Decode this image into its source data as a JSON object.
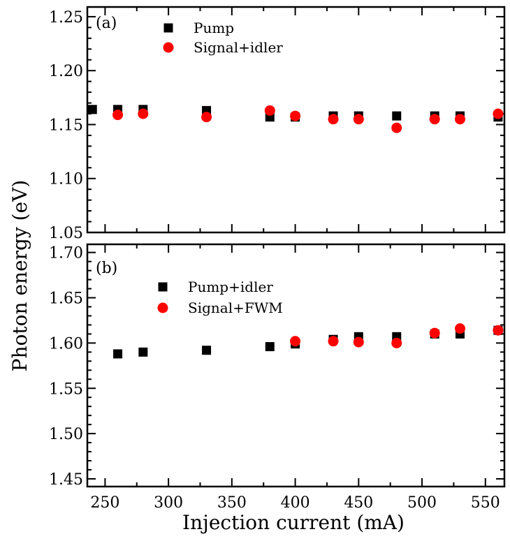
{
  "chart_data": [
    {
      "type": "scatter",
      "panel_label": "(a)",
      "xlabel": "Injection current (mA)",
      "ylabel": "Photon energy (eV)",
      "xlim": [
        236,
        565
      ],
      "ylim": [
        1.05,
        1.259
      ],
      "x_ticks": [
        "250",
        "300",
        "350",
        "400",
        "450",
        "500",
        "550"
      ],
      "y_ticks": [
        "1.05",
        "1.10",
        "1.15",
        "1.20",
        "1.25"
      ],
      "legend_position": "top-left",
      "series": [
        {
          "name": "Pump",
          "marker": "square",
          "color": "#000000",
          "x": [
            240,
            260,
            280,
            330,
            380,
            400,
            430,
            450,
            480,
            510,
            530,
            560
          ],
          "y": [
            1.164,
            1.164,
            1.164,
            1.163,
            1.157,
            1.157,
            1.158,
            1.158,
            1.158,
            1.158,
            1.158,
            1.157
          ]
        },
        {
          "name": "Signal+idler",
          "marker": "circle",
          "color": "#ff0000",
          "x": [
            260,
            280,
            330,
            380,
            400,
            430,
            450,
            480,
            510,
            530,
            560
          ],
          "y": [
            1.159,
            1.16,
            1.157,
            1.163,
            1.158,
            1.155,
            1.155,
            1.147,
            1.155,
            1.155,
            1.16
          ]
        }
      ]
    },
    {
      "type": "scatter",
      "panel_label": "(b)",
      "xlabel": "Injection current (mA)",
      "ylabel": "Photon energy (eV)",
      "xlim": [
        236,
        565
      ],
      "ylim": [
        1.4415,
        1.709
      ],
      "x_ticks": [
        "250",
        "300",
        "350",
        "400",
        "450",
        "500",
        "550"
      ],
      "y_ticks": [
        "1.45",
        "1.50",
        "1.55",
        "1.60",
        "1.65",
        "1.70"
      ],
      "legend_position": "top-left",
      "series": [
        {
          "name": "Pump+idler",
          "marker": "square",
          "color": "#000000",
          "x": [
            260,
            280,
            330,
            380,
            400,
            430,
            450,
            480,
            510,
            530,
            560
          ],
          "y": [
            1.588,
            1.59,
            1.592,
            1.596,
            1.599,
            1.604,
            1.607,
            1.607,
            1.61,
            1.61,
            1.614
          ]
        },
        {
          "name": "Signal+FWM",
          "marker": "circle",
          "color": "#ff0000",
          "x": [
            400,
            430,
            450,
            480,
            510,
            530,
            560
          ],
          "y": [
            1.602,
            1.602,
            1.601,
            1.6,
            1.611,
            1.616,
            1.614
          ]
        }
      ]
    }
  ]
}
